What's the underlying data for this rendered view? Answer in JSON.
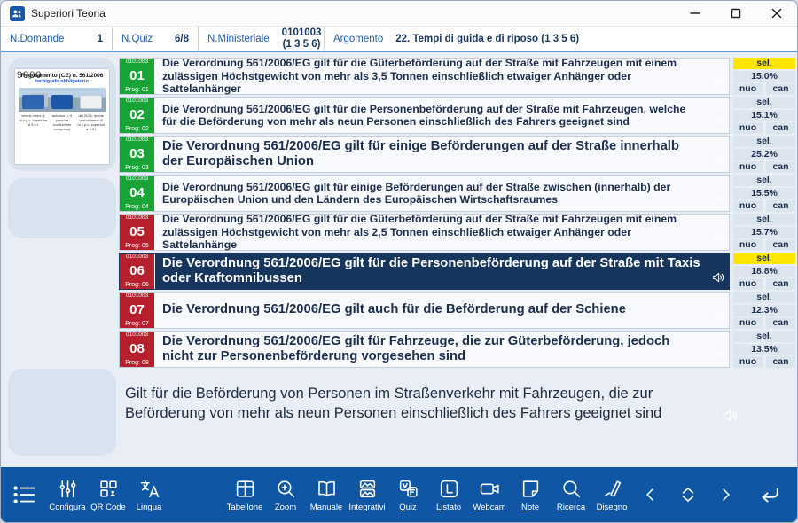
{
  "window": {
    "title": "Superiori Teoria",
    "controls": {
      "minimize": "minimize",
      "maximize": "maximize",
      "close": "close"
    }
  },
  "header": {
    "fields": [
      {
        "label": "N.Domande",
        "value": "1"
      },
      {
        "label": "N.Quiz",
        "value": "6/8"
      },
      {
        "label": "N.Ministeriale",
        "value": "0101003 (1 3 5 6)"
      },
      {
        "label": "Argomento",
        "value": "22. Tempi di guida e di riposo (1 3 5 6)"
      }
    ]
  },
  "sidebar": {
    "image_card": {
      "watermark": "9800",
      "title": "Regolamento (CE) n. 561/2006",
      "subtitle": "tachigrafo obbligatorio",
      "photos": [
        {
          "caption": "veicoli merci di m.c.p.c. superiore a 3,5 t"
        },
        {
          "caption": "autobus (> 9 persone conducente compreso)"
        },
        {
          "caption": "dal 2026, anche veicoli merci di m.c.p.c. superiori a 2,5 t"
        }
      ]
    }
  },
  "questions": {
    "stats_labels": {
      "sel": "sel.",
      "nuo": "nuo",
      "can": "can"
    },
    "rows": [
      {
        "code": "0101003",
        "num": "01",
        "prog": "Prog: 01",
        "badge": "green",
        "selected": false,
        "sel_highlight": true,
        "text": "Die Verordnung 561/2006/EG gilt für die Güterbeförderung auf der Straße mit Fahrzeugen mit einem zulässigen Höchstgewicht von mehr als 3,5 Tonnen einschließlich etwaiger Anhänger oder Sattelanhänger",
        "pct": "15.0%"
      },
      {
        "code": "0101003",
        "num": "02",
        "prog": "Prog: 02",
        "badge": "green",
        "selected": false,
        "sel_highlight": false,
        "text": "Die Verordnung 561/2006/EG gilt für die Personenbeförderung auf der Straße mit Fahrzeugen, welche für die Beförderung von mehr als neun Personen einschließlich des Fahrers geeignet sind",
        "pct": "15.1%"
      },
      {
        "code": "0101003",
        "num": "03",
        "prog": "Prog: 03",
        "badge": "green",
        "selected": false,
        "sel_highlight": false,
        "text": "Die Verordnung 561/2006/EG gilt für einige Beförderungen auf der Straße innerhalb der Europäischen Union",
        "pct": "25.2%"
      },
      {
        "code": "0101003",
        "num": "04",
        "prog": "Prog: 04",
        "badge": "green",
        "selected": false,
        "sel_highlight": false,
        "text": "Die Verordnung 561/2006/EG gilt für einige Beförderungen auf der Straße zwischen (innerhalb) der Europäischen Union und den Ländern des Europäischen Wirtschaftsraumes",
        "pct": "15.5%"
      },
      {
        "code": "0101003",
        "num": "05",
        "prog": "Prog: 05",
        "badge": "red",
        "selected": false,
        "sel_highlight": false,
        "text": "Die Verordnung 561/2006/EG gilt für die Güterbeförderung auf der Straße mit Fahrzeugen mit einem zulässigen Höchstgewicht von mehr als 2,5 Tonnen einschließlich etwaiger Anhänger oder Sattelanhänge",
        "pct": "15.7%"
      },
      {
        "code": "0101003",
        "num": "06",
        "prog": "Prog: 06",
        "badge": "red",
        "selected": true,
        "sel_highlight": true,
        "text": "Die Verordnung 561/2006/EG gilt für die Personenbeförderung auf der Straße mit Taxis oder Kraftomnibussen",
        "pct": "18.8%"
      },
      {
        "code": "0101003",
        "num": "07",
        "prog": "Prog: 07",
        "badge": "red",
        "selected": false,
        "sel_highlight": false,
        "text": "Die Verordnung 561/2006/EG gilt auch für die Beförderung auf der Schiene",
        "pct": "12.3%"
      },
      {
        "code": "0101003",
        "num": "08",
        "prog": "Prog: 08",
        "badge": "red",
        "selected": false,
        "sel_highlight": false,
        "text": "Die Verordnung 561/2006/EG gilt für Fahrzeuge, die zur Güterbeförderung, jedoch nicht zur Personenbeförderung vorgesehen sind",
        "pct": "13.5%"
      }
    ]
  },
  "answer": {
    "text": "Gilt für die Beförderung von Personen im Straßenverkehr mit Fahrzeugen, die zur Beförderung von mehr als neun Personen einschließlich des Fahrers geeignet sind"
  },
  "toolbar": {
    "labels": {
      "configura": "Configura",
      "qr": "QR Code",
      "lingua": "Lingua",
      "tabellone": "Tabellone",
      "zoom": "Zoom",
      "manuale": "Manuale",
      "integrativi": "Integrativi",
      "quiz": "Quiz",
      "listato": "Listato",
      "webcam": "Webcam",
      "note": "Note",
      "ricerca": "Ricerca",
      "disegno": "Disegno"
    }
  },
  "colors": {
    "toolbar_bg": "#0f57a4",
    "selected_row_bg": "#17365d",
    "badge_green": "#18a437",
    "badge_red": "#b5202c",
    "sel_highlight": "#ffe500",
    "stat_cell_bg": "#dce4ee",
    "header_label_blue": "#1f5fae",
    "speaker_blue": "#2e7ed2",
    "main_bg": "#e9eef6",
    "sidebar_card_bg": "#d9e3f0"
  }
}
